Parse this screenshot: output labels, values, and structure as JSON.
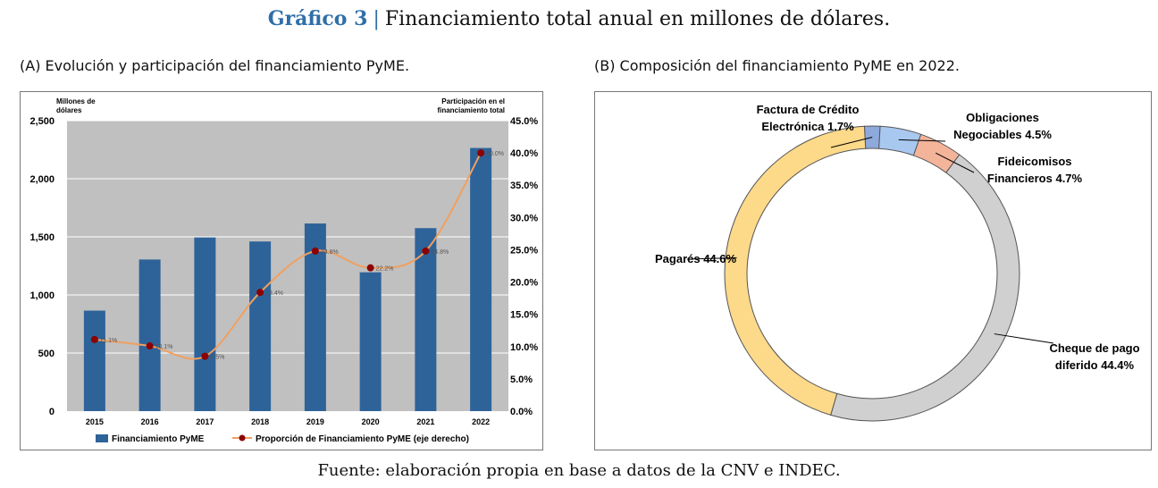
{
  "header": {
    "label": "Gráfico 3",
    "separator": "|",
    "title": "Financiamiento total anual en millones de dólares."
  },
  "panel_a": {
    "title": "(A) Evolución y participación del financiamiento PyME."
  },
  "panel_b": {
    "title": "(B) Composición del financiamiento PyME en 2022."
  },
  "footer": {
    "source": "Fuente: elaboración propia en base a datos de la CNV e INDEC."
  },
  "colors": {
    "bar": "#2e6399",
    "line": "#f0a060",
    "marker": "#8b0000",
    "plot_bg": "#c0c0c0",
    "title_accent": "#2f6fa8"
  },
  "chart_data": [
    {
      "type": "bar",
      "categories": [
        "2015",
        "2016",
        "2017",
        "2018",
        "2019",
        "2020",
        "2021",
        "2022"
      ],
      "series": [
        {
          "name": "Financiamiento PyME",
          "type": "bar",
          "axis": "left",
          "values": [
            865,
            1305,
            1495,
            1460,
            1615,
            1195,
            1575,
            2265
          ]
        },
        {
          "name": "Proporción de Financiamiento PyME (eje derecho)",
          "type": "line",
          "axis": "right",
          "values": [
            11.1,
            10.1,
            8.5,
            18.4,
            24.8,
            22.2,
            24.8,
            40.0
          ],
          "labels": [
            "11.1%",
            "10.1%",
            "8.5%",
            "18.4%",
            "24.8%",
            "22.2%",
            "24.8%",
            "40.0%"
          ]
        }
      ],
      "ylabel": "Millones de dólares",
      "y2label": "Participación en el financiamiento total",
      "ylim": [
        0,
        2500
      ],
      "yticks": [
        "0",
        "500",
        "1,000",
        "1,500",
        "2,000",
        "2,500"
      ],
      "y2lim": [
        0,
        45
      ],
      "y2ticks": [
        "0.0%",
        "5.0%",
        "10.0%",
        "15.0%",
        "20.0%",
        "25.0%",
        "30.0%",
        "35.0%",
        "40.0%",
        "45.0%"
      ],
      "grid": true,
      "legend_position": "bottom"
    },
    {
      "type": "pie",
      "variant": "donut",
      "slices": [
        {
          "label": "Factura de Crédito Electrónica 1.7%",
          "lines": [
            "Factura de Crédito",
            "Electrónica 1.7%"
          ],
          "value": 1.7,
          "color": "#8ea9db"
        },
        {
          "label": "Obligaciones Negociables 4.5%",
          "lines": [
            "Obligaciones",
            "Negociables 4.5%"
          ],
          "value": 4.5,
          "color": "#a9c8f0"
        },
        {
          "label": "Fideicomisos Financieros 4.7%",
          "lines": [
            "Fideicomisos",
            "Financieros 4.7%"
          ],
          "value": 4.7,
          "color": "#f4b49a"
        },
        {
          "label": "Cheque de pago diferido 44.4%",
          "lines": [
            "Cheque de pago",
            "diferido 44.4%"
          ],
          "value": 44.4,
          "color": "#d0d0d0"
        },
        {
          "label": "Pagarés 44.6%",
          "lines": [
            "Pagarés 44.6%"
          ],
          "value": 44.6,
          "color": "#fdd98a"
        }
      ]
    }
  ]
}
